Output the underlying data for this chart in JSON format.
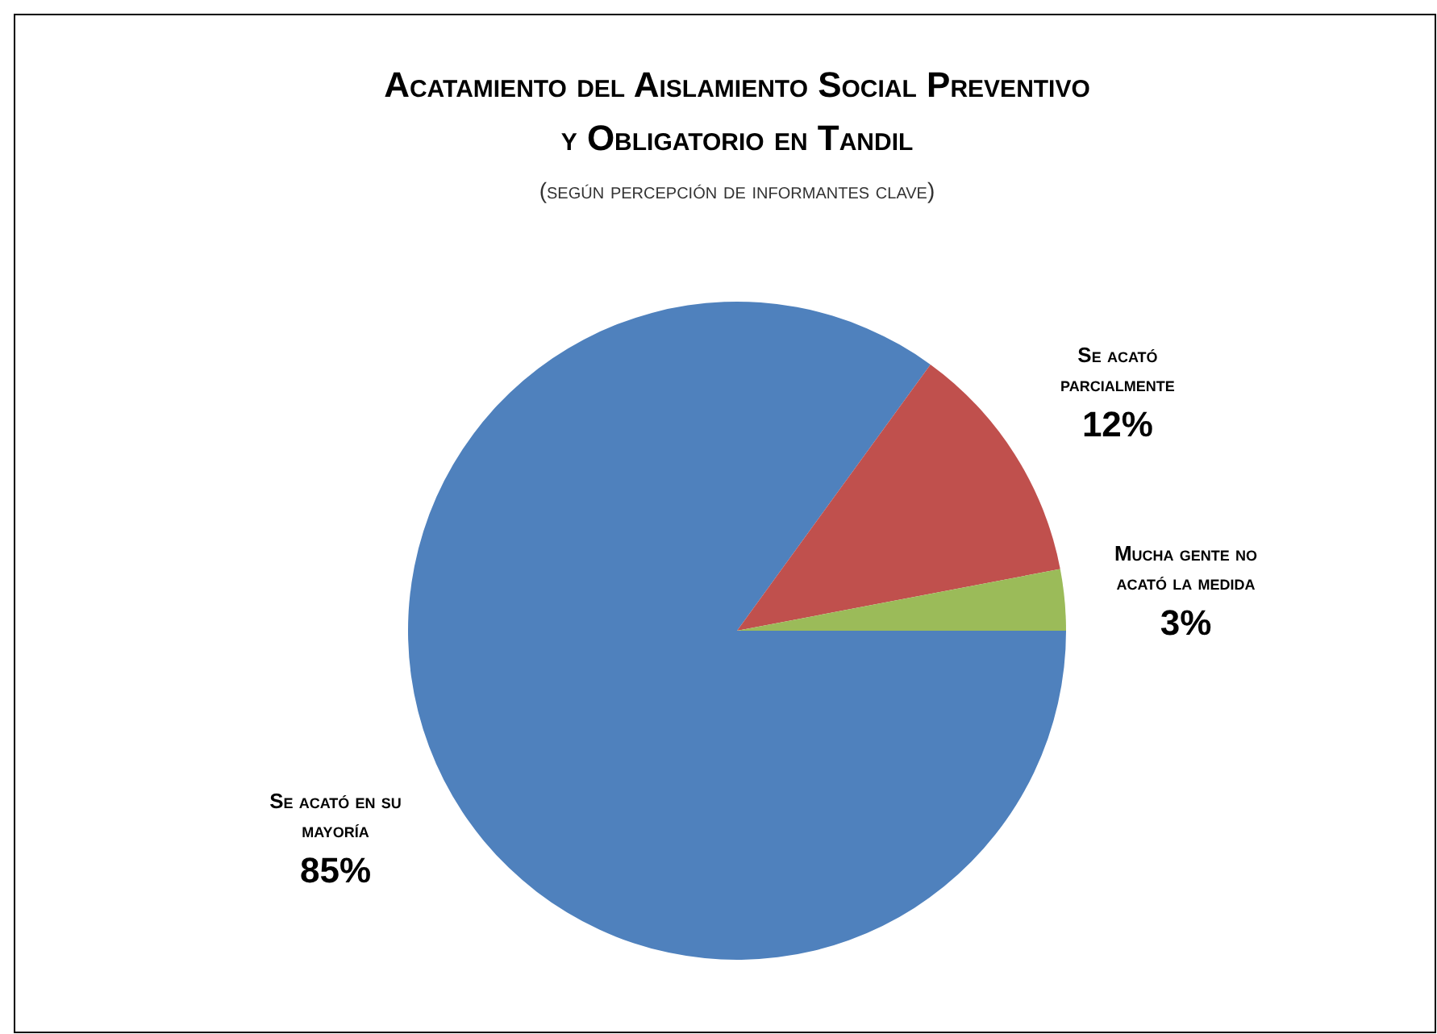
{
  "chart_data": {
    "type": "pie",
    "title": "Acatamiento del Aislamiento Social Preventivo y Obligatorio en Tandil",
    "subtitle": "(según percepción de informantes clave)",
    "categories": [
      "Se acató en su mayoría",
      "Se acató parcialmente",
      "Mucha gente no acató la medida"
    ],
    "values": [
      85,
      12,
      3
    ],
    "colors": [
      "#4f81bd",
      "#c0504d",
      "#9bbb59"
    ],
    "value_labels": [
      "85%",
      "12%",
      "3%"
    ],
    "legend": false
  }
}
